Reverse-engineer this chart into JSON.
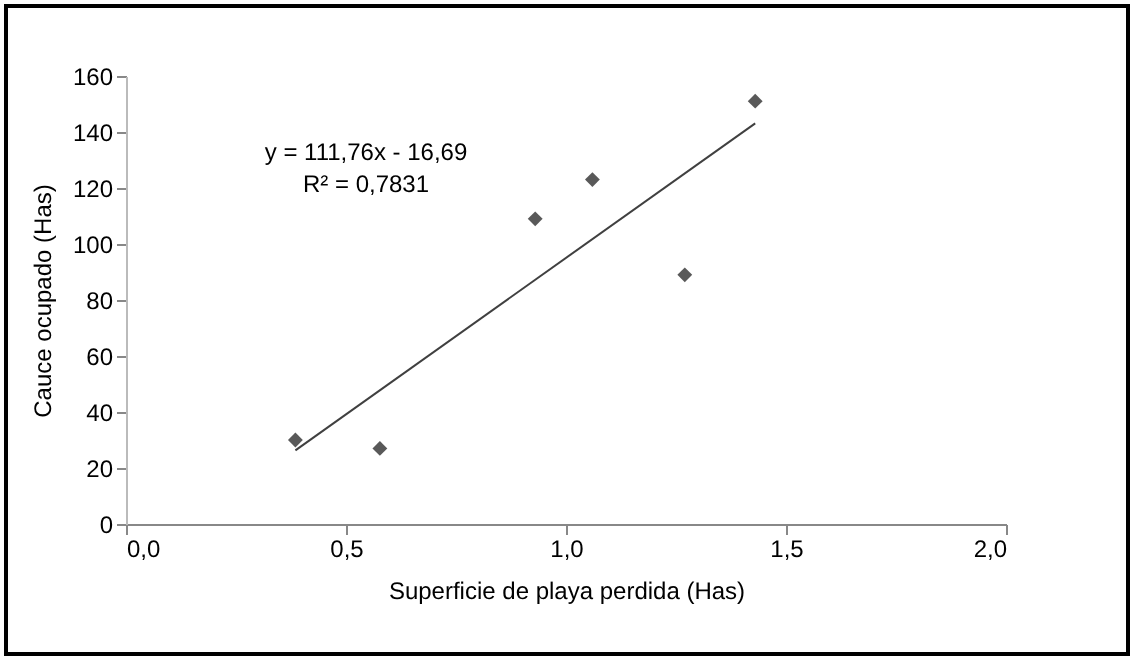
{
  "chart_data": {
    "type": "scatter",
    "xlabel": "Superficie de playa perdida (Has)",
    "ylabel": "Cauce ocupado (Has)",
    "xlim": [
      0,
      2
    ],
    "xticks": [
      {
        "value": 0,
        "label": "0,0"
      },
      {
        "value": 0.5,
        "label": "0,5"
      },
      {
        "value": 1,
        "label": "1,0"
      },
      {
        "value": 1.5,
        "label": "1,5"
      },
      {
        "value": 2,
        "label": "2,0"
      }
    ],
    "ylim": [
      0,
      160
    ],
    "yticks": [
      0,
      20,
      40,
      60,
      80,
      100,
      120,
      140,
      160
    ],
    "series": [
      {
        "type": "scatter",
        "color": "#595959",
        "x": [
          0.385,
          0.577,
          0.93,
          1.06,
          1.27,
          1.43
        ],
        "values": [
          30,
          27,
          109,
          123,
          89,
          151
        ]
      },
      {
        "type": "line",
        "marker": "none",
        "color": "#404040",
        "x": [
          0.385,
          1.43
        ],
        "values": [
          26.3,
          143.1
        ]
      }
    ],
    "annotations": [
      "y = 111,76x - 16,69",
      "R² = 0,7831"
    ],
    "marker": "diamond",
    "grid": false
  }
}
